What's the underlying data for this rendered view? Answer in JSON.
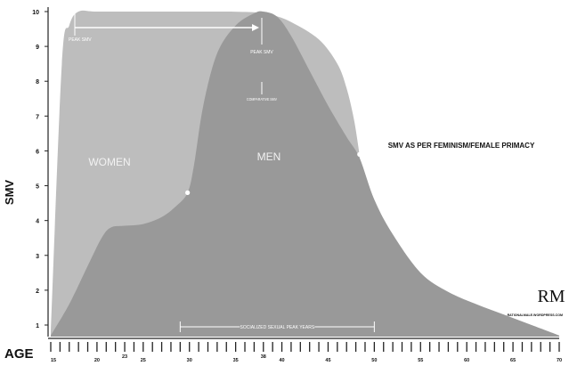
{
  "chart_data": {
    "type": "area",
    "title": "SMV AS PER FEMINISM/FEMALE PRIMACY",
    "ylabel": "SMV",
    "xlabel": "AGE",
    "xlim": [
      15,
      70
    ],
    "ylim": [
      0.6,
      10
    ],
    "y_ticks": [
      1,
      2,
      3,
      4,
      5,
      6,
      7,
      8,
      9,
      10
    ],
    "x_tick_labels": [
      15,
      20,
      23,
      25,
      30,
      35,
      38,
      40,
      45,
      50,
      55,
      60,
      65,
      70
    ],
    "grid": false,
    "series": [
      {
        "name": "WOMEN",
        "color": "#bdbdbd",
        "x": [
          15,
          16.2,
          17,
          18,
          20,
          25,
          30,
          34,
          37,
          38,
          39,
          41,
          44,
          46,
          47,
          47.8,
          48.4
        ],
        "y": [
          0.8,
          8.5,
          9.6,
          10,
          10,
          10,
          10,
          10,
          9.98,
          9.95,
          9.9,
          9.7,
          9.2,
          8.5,
          7.8,
          6.9,
          5.9
        ]
      },
      {
        "name": "MEN",
        "color": "#999999",
        "x": [
          15,
          17,
          19,
          20.5,
          21.5,
          23,
          25,
          27,
          28.5,
          29.8,
          30.5,
          31.5,
          33,
          35,
          37,
          38,
          39.5,
          41,
          43,
          45,
          47,
          48.4,
          50,
          52,
          55,
          58,
          61,
          64,
          67,
          70
        ],
        "y": [
          0.7,
          1.6,
          2.7,
          3.5,
          3.8,
          3.85,
          3.9,
          4.1,
          4.4,
          4.8,
          5.6,
          7.3,
          8.8,
          9.6,
          9.95,
          10,
          9.85,
          9.3,
          8.3,
          7.3,
          6.4,
          5.8,
          4.6,
          3.6,
          2.5,
          1.95,
          1.6,
          1.3,
          1.0,
          0.7
        ]
      }
    ],
    "annotations": {
      "peak_women": "PEAK SMV",
      "peak_men": "PEAK SMV",
      "comparative": "COMPARATIVE SMV",
      "socialized": "SOCIALIZED SEXUAL PEAK YEARS",
      "women_label": "WOMEN",
      "men_label": "MEN"
    },
    "marked_points": [
      {
        "x": 29.8,
        "y": 4.8
      },
      {
        "x": 48.4,
        "y": 5.9
      }
    ],
    "socialized_range": [
      29,
      50
    ]
  },
  "logo": {
    "text": "RM",
    "url": "RATIONALMALE.WORDPRESS.COM"
  }
}
